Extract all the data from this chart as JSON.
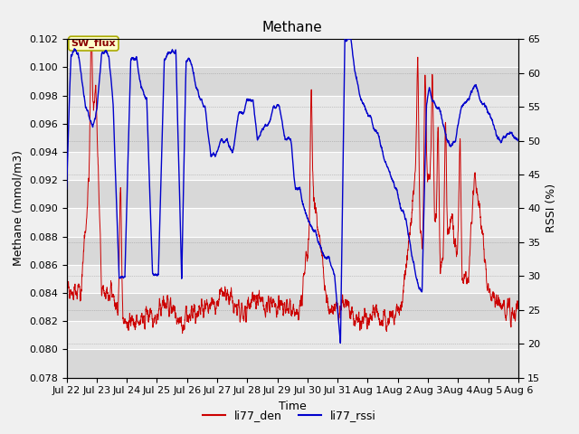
{
  "title": "Methane",
  "xlabel": "Time",
  "ylabel_left": "Methane (mmol/m3)",
  "ylabel_right": "RSSI (%)",
  "ylim_left": [
    0.078,
    0.102
  ],
  "ylim_right": [
    15,
    65
  ],
  "yticks_left": [
    0.078,
    0.08,
    0.082,
    0.084,
    0.086,
    0.088,
    0.09,
    0.092,
    0.094,
    0.096,
    0.098,
    0.1,
    0.102
  ],
  "yticks_right": [
    15,
    20,
    25,
    30,
    35,
    40,
    45,
    50,
    55,
    60,
    65
  ],
  "xtick_labels": [
    "Jul 22",
    "Jul 23",
    "Jul 24",
    "Jul 25",
    "Jul 26",
    "Jul 27",
    "Jul 28",
    "Jul 29",
    "Jul 30",
    "Jul 31",
    "Aug 1",
    "Aug 2",
    "Aug 3",
    "Aug 4",
    "Aug 5",
    "Aug 6"
  ],
  "color_red": "#cc0000",
  "color_blue": "#0000cc",
  "fig_facecolor": "#f0f0f0",
  "plot_facecolor": "#e8e8e8",
  "annotation_text": "SW_flux",
  "annotation_bg": "#ffffcc",
  "annotation_border": "#aaaa00",
  "legend_label_red": "li77_den",
  "legend_label_blue": "li77_rssi",
  "title_fontsize": 11,
  "axis_label_fontsize": 9,
  "tick_fontsize": 8,
  "band_colors": [
    "#d8d8d8",
    "#e8e8e8"
  ],
  "rssi_keypoints_t": [
    0,
    0.15,
    0.4,
    0.65,
    0.9,
    1.05,
    1.2,
    1.45,
    1.6,
    1.8,
    2.0,
    2.2,
    2.4,
    2.55,
    2.75,
    2.95,
    3.15,
    3.35,
    3.55,
    3.75,
    3.95,
    4.1,
    4.25,
    4.45,
    4.6,
    4.75,
    4.95,
    5.1,
    5.3,
    5.5,
    5.7,
    5.9,
    6.05,
    6.2,
    6.4,
    6.55,
    6.75,
    6.9,
    7.1,
    7.3,
    7.5,
    7.7,
    7.85,
    8.0,
    8.15,
    8.3,
    8.5,
    8.65,
    8.85,
    9.0,
    9.2,
    9.4,
    9.55,
    9.75,
    9.9,
    10.05,
    10.2,
    10.35,
    10.55,
    10.75,
    10.9,
    11.1,
    11.3,
    11.5,
    11.65,
    11.85,
    12.0,
    12.1,
    12.2,
    12.35,
    12.45,
    12.55,
    12.7,
    12.85,
    13.0,
    13.15,
    13.35,
    13.55,
    13.7,
    13.9,
    14.05,
    14.2,
    14.4,
    14.6,
    14.75,
    14.9,
    15.1,
    15.3,
    15.5
  ],
  "rssi_keypoints_v": [
    43,
    63,
    63,
    55,
    52,
    55,
    63,
    63,
    55,
    30,
    30,
    62,
    62,
    58,
    56,
    30,
    30,
    62,
    63,
    63,
    30,
    62,
    62,
    58,
    56,
    55,
    48,
    48,
    50,
    50,
    48,
    54,
    54,
    56,
    56,
    50,
    52,
    52,
    55,
    55,
    50,
    50,
    43,
    43,
    40,
    38,
    37,
    35,
    33,
    33,
    30,
    20,
    65,
    65,
    60,
    57,
    55,
    54,
    52,
    50,
    47,
    45,
    43,
    40,
    38,
    33,
    30,
    28,
    28,
    55,
    58,
    56,
    55,
    54,
    51,
    49,
    50,
    55,
    56,
    57,
    58,
    56,
    55,
    53,
    51,
    50,
    51,
    51,
    50
  ],
  "den_keypoints_t": [
    0,
    0.5,
    0.8,
    1.0,
    1.2,
    1.5,
    2.0,
    2.5,
    3.0,
    3.5,
    4.0,
    4.5,
    5.0,
    5.5,
    6.0,
    6.5,
    7.0,
    7.5,
    8.0,
    8.5,
    9.0,
    9.5,
    10.0,
    10.5,
    11.0,
    11.5,
    12.0,
    12.2,
    12.4,
    12.6,
    12.8,
    13.0,
    13.2,
    13.4,
    13.6,
    13.8,
    14.0,
    14.5,
    15.0,
    15.5
  ],
  "den_keypoints_v": [
    0.084,
    0.084,
    0.093,
    0.099,
    0.084,
    0.084,
    0.082,
    0.082,
    0.0825,
    0.083,
    0.082,
    0.0825,
    0.083,
    0.084,
    0.0825,
    0.0835,
    0.083,
    0.083,
    0.0825,
    0.091,
    0.0825,
    0.083,
    0.082,
    0.0825,
    0.082,
    0.083,
    0.093,
    0.087,
    0.093,
    0.09,
    0.086,
    0.087,
    0.089,
    0.087,
    0.085,
    0.085,
    0.093,
    0.084,
    0.083,
    0.0825
  ]
}
